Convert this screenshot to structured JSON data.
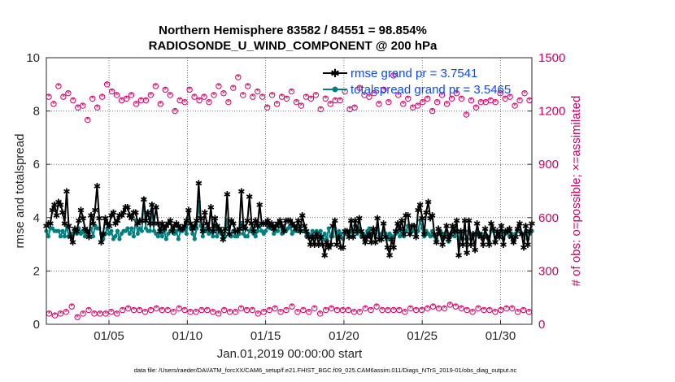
{
  "chart_data": {
    "type": "line",
    "title": [
      "Northern Hemisphere 83582 / 84551 = 98.854%",
      "RADIOSONDE_U_WIND_COMPONENT @ 200 hPa"
    ],
    "xlabel": "Jan.01,2019 00:00:00 start",
    "ylabel_left": "rmse and totalspread",
    "ylabel_right": "# of obs: o=possible; ×=assimilated",
    "footnote": "data file: /Users/raeder/DAI/ATM_forcXX/CAM6_setup/f.e21.FHIST_BGC.f09_025.CAM6assim.011/Diags_NTrS_2019-01/obs_diag_output.nc",
    "xlim": [
      1,
      32
    ],
    "ylim_left": [
      0,
      10
    ],
    "ylim_right": [
      0,
      1500
    ],
    "xticks": [
      5,
      10,
      15,
      20,
      25,
      30
    ],
    "xticklabels": [
      "01/05",
      "01/10",
      "01/15",
      "01/20",
      "01/25",
      "01/30"
    ],
    "yticks_left": [
      0,
      2,
      4,
      6,
      8,
      10
    ],
    "yticklabels_left": [
      "0",
      "2",
      "4",
      "6",
      "8",
      "10"
    ],
    "yticks_right": [
      0,
      300,
      600,
      900,
      1200,
      1500
    ],
    "yticklabels_right": [
      "0",
      "300",
      "600",
      "900",
      "1200",
      "1500"
    ],
    "legend": [
      "rmse grand pr = 3.7541",
      "totalspread grand pr = 3.5465"
    ],
    "legend_position": "top-right",
    "colors": {
      "rmse": "#000000",
      "spread": "#008080",
      "obs": "#cc0066",
      "legend_text": "#0a4aff"
    },
    "series": {
      "rmse": [
        3.7,
        3.8,
        3.8,
        4.3,
        4.5,
        4.1,
        4.6,
        4.5,
        4.2,
        3.8,
        5.0,
        3.7,
        3.3,
        3.1,
        3.6,
        3.5,
        3.9,
        4.3,
        4.0,
        3.6,
        3.5,
        3.3,
        4.1,
        3.8,
        4.3,
        5.2,
        4.0,
        3.1,
        3.4,
        4.0,
        3.8,
        3.7,
        4.1,
        4.2,
        3.8,
        3.9,
        4.1,
        4.1,
        4.2,
        4.4,
        4.4,
        4.1,
        4.0,
        4.2,
        4.2,
        3.8,
        3.9,
        3.9,
        4.7,
        3.9,
        4.2,
        3.8,
        4.5,
        3.8,
        4.4,
        3.8,
        3.5,
        3.8,
        3.6,
        3.7,
        3.8,
        3.9,
        3.5,
        3.7,
        3.8,
        3.7,
        3.6,
        3.6,
        3.7,
        3.9,
        4.3,
        3.8,
        3.6,
        3.7,
        3.9,
        5.3,
        4.0,
        3.5,
        4.2,
        3.8,
        3.6,
        4.4,
        3.5,
        4.0,
        3.7,
        3.6,
        3.5,
        3.2,
        3.6,
        4.9,
        3.4,
        3.9,
        3.8,
        3.5,
        3.5,
        3.6,
        5.0,
        3.7,
        3.6,
        3.9,
        4.8,
        3.8,
        3.5,
        3.9,
        3.7,
        4.5,
        3.8,
        3.8,
        3.8,
        3.9,
        3.7,
        3.8,
        3.6,
        3.7,
        3.8,
        3.9,
        3.7,
        3.5,
        3.9,
        3.9,
        3.9,
        3.8,
        3.7,
        3.6,
        3.9,
        3.5,
        4.1,
        3.7,
        3.5,
        3.3,
        3.0,
        3.3,
        3.0,
        3.4,
        3.0,
        3.3,
        3.0,
        2.6,
        3.1,
        2.9,
        3.0,
        3.7,
        3.9,
        3.0,
        3.3,
        2.9,
        2.9,
        3.5,
        3.5,
        3.3,
        3.9,
        3.3,
        3.9,
        3.5,
        4.0,
        3.5,
        3.3,
        3.1,
        3.3,
        3.4,
        3.1,
        3.6,
        3.1,
        4.0,
        3.2,
        3.2,
        3.8,
        3.3,
        2.9,
        2.6,
        3.2,
        2.9,
        3.5,
        3.8,
        3.6,
        3.9,
        3.4,
        4.1,
        4.1,
        3.4,
        3.7,
        3.7,
        3.3,
        4.3,
        4.5,
        4.0,
        3.4,
        4.2,
        4.6,
        4.0,
        4.1,
        3.4,
        3.1,
        3.6,
        3.4,
        3.0,
        3.3,
        3.7,
        3.2,
        3.4,
        3.7,
        3.5,
        3.9,
        2.6,
        3.5,
        3.0,
        3.9,
        2.7,
        3.9,
        3.0,
        3.4,
        2.8,
        3.8,
        3.4,
        3.3,
        3.0,
        3.6,
        3.3,
        3.0,
        3.8,
        3.6,
        3.1,
        3.5,
        3.3,
        3.7,
        3.0,
        3.5,
        3.5,
        3.6,
        3.3,
        3.1,
        3.3,
        3.6,
        3.8,
        3.4,
        2.9,
        3.7,
        3.0,
        3.5,
        3.8
      ],
      "spread": [
        3.5,
        3.3,
        3.6,
        3.6,
        3.5,
        3.5,
        3.5,
        3.3,
        3.5,
        3.3,
        3.7,
        3.3,
        3.4,
        3.4,
        3.5,
        3.4,
        3.6,
        3.4,
        3.5,
        3.3,
        3.5,
        3.4,
        3.6,
        3.3,
        3.7,
        3.6,
        3.6,
        3.4,
        3.2,
        3.4,
        3.6,
        3.4,
        3.5,
        3.2,
        3.3,
        3.5,
        3.2,
        3.4,
        3.5,
        3.5,
        3.6,
        3.4,
        3.6,
        3.3,
        3.9,
        3.4,
        3.6,
        3.5,
        4.7,
        3.6,
        3.5,
        3.5,
        4.3,
        3.5,
        3.4,
        3.3,
        3.6,
        3.3,
        3.5,
        3.2,
        3.4,
        3.5,
        3.6,
        3.4,
        3.5,
        3.2,
        3.5,
        3.5,
        3.6,
        3.4,
        4.2,
        3.6,
        3.4,
        3.2,
        3.6,
        4.6,
        3.7,
        3.3,
        3.6,
        3.5,
        3.4,
        3.5,
        3.3,
        3.7,
        3.3,
        3.5,
        3.4,
        3.2,
        3.3,
        3.9,
        3.4,
        3.3,
        3.5,
        3.3,
        3.3,
        3.4,
        3.8,
        3.4,
        3.3,
        3.3,
        3.5,
        3.6,
        3.4,
        3.3,
        3.5,
        3.7,
        3.5,
        3.4,
        3.5,
        3.7,
        3.6,
        3.7,
        3.4,
        3.5,
        3.5,
        3.8,
        3.4,
        3.6,
        3.5,
        3.6,
        3.7,
        3.4,
        3.5,
        3.5,
        3.7,
        3.5,
        3.5,
        3.5,
        3.3,
        3.4,
        3.3,
        3.5,
        3.2,
        3.5,
        3.3,
        3.5,
        3.2,
        3.4,
        3.2,
        3.6,
        3.3,
        3.3,
        3.6,
        3.4,
        3.5,
        3.4,
        3.2,
        3.4,
        3.5,
        3.3,
        3.5,
        3.3,
        3.7,
        3.4,
        3.6,
        3.3,
        3.4,
        3.3,
        3.5,
        3.6,
        3.3,
        3.5,
        3.4,
        3.6,
        3.3,
        3.4,
        3.5,
        3.4,
        3.2,
        3.4,
        3.3,
        3.3,
        3.4,
        3.5,
        3.3,
        3.5,
        3.3,
        3.5,
        3.7,
        3.4,
        3.5,
        3.5,
        3.4,
        3.5,
        3.9,
        3.6,
        3.3,
        3.5,
        3.4,
        3.3,
        3.5,
        3.3,
        3.2,
        3.4,
        3.5,
        3.2,
        3.4,
        3.5,
        3.1,
        3.3,
        3.5,
        3.3,
        3.5,
        3.2,
        3.4,
        3.2,
        3.5,
        3.2,
        3.5,
        3.2,
        3.3,
        3.4,
        3.5,
        3.3,
        3.4,
        3.2,
        3.4,
        3.3,
        3.1,
        3.5,
        3.5,
        3.1,
        3.3,
        3.4,
        3.5,
        3.2,
        3.4,
        3.5,
        3.3,
        3.4,
        3.1,
        3.4,
        3.5,
        3.5,
        3.4,
        3.3,
        3.5,
        3.2,
        3.4,
        3.5
      ],
      "obs_possible_top": [
        1280,
        1240,
        1340,
        1280,
        1300,
        1260,
        1220,
        1230,
        1150,
        1270,
        1220,
        1280,
        1350,
        1310,
        1290,
        1260,
        1270,
        1290,
        1240,
        1260,
        1260,
        1290,
        1340,
        1240,
        1320,
        1290,
        1200,
        1260,
        1250,
        1320,
        1280,
        1260,
        1280,
        1250,
        1290,
        1340,
        1300,
        1250,
        1330,
        1390,
        1290,
        1340,
        1280,
        1310,
        1280,
        1220,
        1290,
        1240,
        1280,
        1270,
        1310,
        1250,
        1230,
        1280,
        1270,
        1290,
        1210,
        1270,
        1240,
        1260,
        1260,
        1310,
        1210,
        1220,
        1330,
        1290,
        1280,
        1300,
        1240,
        1320,
        1250,
        1400,
        1290,
        1240,
        1270,
        1220,
        1230,
        1250,
        1270,
        1200,
        1250,
        1290,
        1240,
        1270,
        1300,
        1270,
        1180,
        1260,
        1220,
        1250,
        1250,
        1260,
        1250,
        1300,
        1270,
        1280,
        1230,
        1260,
        1300,
        1260
      ],
      "obs_possible_bottom": [
        60,
        50,
        60,
        70,
        100,
        40,
        60,
        80,
        60,
        60,
        60,
        70,
        60,
        80,
        90,
        80,
        80,
        70,
        80,
        90,
        80,
        80,
        70,
        90,
        80,
        70,
        70,
        80,
        80,
        70,
        60,
        80,
        70,
        70,
        90,
        80,
        80,
        60,
        70,
        80,
        90,
        70,
        80,
        100,
        70,
        80,
        70,
        90,
        60,
        80,
        90,
        80,
        80,
        80,
        70,
        70,
        90,
        80,
        100,
        80,
        80,
        80,
        80,
        70,
        90,
        80,
        80,
        90,
        100,
        90,
        90,
        110,
        100,
        90,
        80,
        70,
        90,
        80,
        80,
        70,
        80,
        90,
        90,
        70,
        80,
        70
      ]
    }
  }
}
